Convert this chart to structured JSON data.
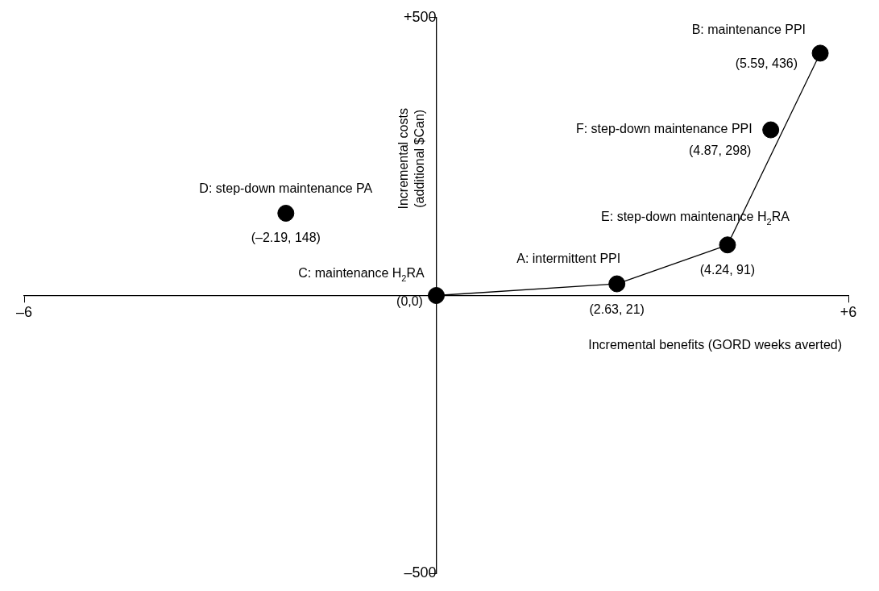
{
  "chart_data": {
    "type": "scatter",
    "xlabel": "Incremental benefits (GORD weeks averted)",
    "ylabel": "Incremental costs (additional $Can)",
    "xlim": [
      -6,
      6
    ],
    "ylim": [
      -500,
      500
    ],
    "xticks": [
      {
        "value": -6,
        "label": "–6"
      },
      {
        "value": 6,
        "label": "+6"
      }
    ],
    "yticks": [
      {
        "value": -500,
        "label": "–500"
      },
      {
        "value": 500,
        "label": "+500"
      }
    ],
    "grid": false,
    "legend": false,
    "marker": "circle",
    "series": [
      {
        "type": "line",
        "color": "#000000",
        "x": [
          0,
          2.63,
          4.24,
          5.59
        ],
        "values": [
          0,
          21,
          91,
          436
        ],
        "marker": "none",
        "line_style": "solid"
      },
      {
        "color": "#000000",
        "x": [
          2.63,
          5.59,
          0,
          -2.19,
          4.24,
          4.87
        ],
        "values": [
          21,
          436,
          0,
          148,
          91,
          298
        ],
        "value_labels": [
          "(2.63, 21)",
          "(5.59, 436)",
          "(0,0)",
          "(–2.19, 148)",
          "(4.24, 91)",
          "(4.87, 298)"
        ]
      }
    ],
    "annotations": [
      {
        "text": "A: intermittent PPI",
        "x": 2.63,
        "y": 21
      },
      {
        "text": "B: maintenance PPI",
        "x": 5.59,
        "y": 436
      },
      {
        "text": "C: maintenance H$_{2}$RA",
        "x": 0,
        "y": 0
      },
      {
        "text": "D: step-down maintenance PA",
        "x": -2.19,
        "y": 148
      },
      {
        "text": "E: step-down maintenance H$_{2}$RA",
        "x": 4.24,
        "y": 91
      },
      {
        "text": "F: step-down maintenance PPI",
        "x": 4.87,
        "y": 298
      }
    ]
  }
}
